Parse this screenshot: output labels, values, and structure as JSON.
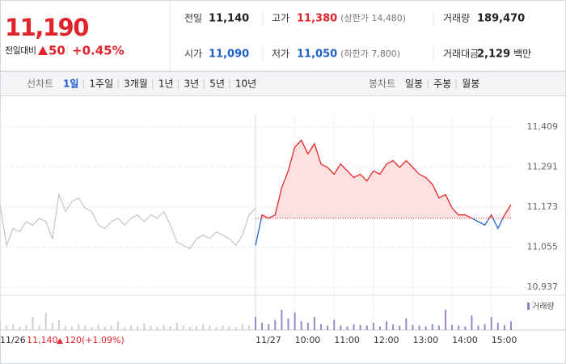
{
  "header": {
    "price": "11,190",
    "change_label": "전일대비",
    "change": "50",
    "rate": "+0.45%"
  },
  "quote": [
    {
      "label": "전일",
      "value": "11,140",
      "color": "#222222"
    },
    {
      "label": "고가",
      "value": "11,380",
      "note": "(상한가 14,480)",
      "color": "#e0242b"
    },
    {
      "label": "거래량",
      "value": "189,470",
      "color": "#222222"
    },
    {
      "label": "시가",
      "value": "11,090",
      "color": "#1e62c9"
    },
    {
      "label": "저가",
      "value": "11,050",
      "note": "(하한가 7,800)",
      "color": "#1e62c9"
    },
    {
      "label": "거래대금",
      "value": "2,129",
      "unit": "백만",
      "color": "#222222"
    }
  ],
  "tabs": {
    "line_label": "선차트",
    "line": [
      "1일",
      "1주일",
      "3개월",
      "1년",
      "3년",
      "5년",
      "10년"
    ],
    "active": 0,
    "candle_label": "봉차트",
    "candle": [
      "일봉",
      "주봉",
      "월봉"
    ]
  },
  "chart_data": {
    "type": "line",
    "xlim": [
      0,
      780
    ],
    "xticks": [
      {
        "value": 0,
        "label": "11/26"
      },
      {
        "value": 390,
        "label": "11/27"
      },
      {
        "value": 450,
        "label": "10:00"
      },
      {
        "value": 510,
        "label": "11:00"
      },
      {
        "value": 570,
        "label": "12:00"
      },
      {
        "value": 630,
        "label": "13:00"
      },
      {
        "value": 690,
        "label": "14:00"
      },
      {
        "value": 750,
        "label": "15:00"
      }
    ],
    "ylim": [
      10913,
      11445
    ],
    "yticks": [
      {
        "value": 11409,
        "label": "11,409"
      },
      {
        "value": 11291,
        "label": "11,291"
      },
      {
        "value": 11173,
        "label": "11,173"
      },
      {
        "value": 11055,
        "label": "11,055"
      },
      {
        "value": 10937,
        "label": "10,937"
      }
    ],
    "base": 11140,
    "series": [
      {
        "color": "#c4c4c4",
        "x": [
          0,
          10,
          20,
          30,
          40,
          50,
          60,
          70,
          80,
          90,
          100,
          110,
          120,
          130,
          140,
          150,
          160,
          170,
          180,
          190,
          200,
          210,
          220,
          230,
          240,
          250,
          260,
          270,
          280,
          290,
          300,
          310,
          320,
          330,
          340,
          350,
          360,
          370,
          380,
          390
        ],
        "values": [
          11180,
          11060,
          11110,
          11100,
          11130,
          11120,
          11140,
          11130,
          11080,
          11210,
          11160,
          11190,
          11200,
          11170,
          11160,
          11120,
          11110,
          11130,
          11140,
          11120,
          11140,
          11150,
          11130,
          11150,
          11140,
          11160,
          11120,
          11070,
          11060,
          11050,
          11080,
          11090,
          11080,
          11100,
          11090,
          11080,
          11060,
          11090,
          11150,
          11170
        ]
      },
      {
        "color": "#e8262a",
        "down_color": "#1e62c9",
        "fill": "#fde1e1",
        "x": [
          390,
          400,
          410,
          420,
          430,
          440,
          450,
          460,
          470,
          480,
          490,
          500,
          510,
          520,
          530,
          540,
          550,
          560,
          570,
          580,
          590,
          600,
          610,
          620,
          630,
          640,
          650,
          660,
          670,
          680,
          690,
          700,
          710,
          720,
          730,
          740,
          750,
          760,
          770,
          780
        ],
        "values": [
          11060,
          11150,
          11140,
          11150,
          11230,
          11280,
          11350,
          11370,
          11330,
          11360,
          11300,
          11290,
          11270,
          11300,
          11280,
          11260,
          11270,
          11250,
          11280,
          11270,
          11300,
          11310,
          11290,
          11310,
          11290,
          11270,
          11260,
          11240,
          11200,
          11210,
          11170,
          11150,
          11150,
          11140,
          11130,
          11120,
          11150,
          11110,
          11150,
          11180
        ]
      }
    ],
    "volume": {
      "name": "거래량",
      "legend_color": "#8e7cc3",
      "ylim": [
        0,
        20000
      ],
      "series": [
        {
          "color": "#cfcfcf",
          "x": [
            0,
            10,
            20,
            30,
            40,
            50,
            60,
            70,
            80,
            90,
            100,
            110,
            120,
            130,
            140,
            150,
            160,
            170,
            180,
            190,
            200,
            210,
            220,
            230,
            240,
            250,
            260,
            270,
            280,
            290,
            300,
            310,
            320,
            330,
            340,
            350,
            360,
            370,
            380,
            390
          ],
          "values": [
            6000,
            3000,
            4000,
            2500,
            3500,
            9000,
            3000,
            12000,
            5000,
            7000,
            3000,
            2500,
            4000,
            3000,
            2000,
            3500,
            2500,
            3000,
            6000,
            2000,
            3000,
            2500,
            4500,
            3000,
            2000,
            3500,
            2500,
            5000,
            3000,
            2000,
            2500,
            4000,
            3000,
            2000,
            3000,
            2500,
            2000,
            4000,
            3000,
            2500
          ]
        },
        {
          "color": "#9a86c9",
          "x": [
            390,
            400,
            410,
            420,
            430,
            440,
            450,
            460,
            470,
            480,
            490,
            500,
            510,
            520,
            530,
            540,
            550,
            560,
            570,
            580,
            590,
            600,
            610,
            620,
            630,
            640,
            650,
            660,
            670,
            680,
            690,
            700,
            710,
            720,
            730,
            740,
            750,
            760,
            770,
            780
          ],
          "values": [
            9000,
            5000,
            4000,
            7000,
            14000,
            8000,
            12000,
            6000,
            5000,
            9000,
            4000,
            3000,
            7000,
            3000,
            2500,
            4000,
            3500,
            3000,
            5000,
            2500,
            6000,
            4000,
            3000,
            8000,
            3500,
            3000,
            2500,
            4000,
            3000,
            14000,
            3500,
            3000,
            2500,
            10000,
            3000,
            4000,
            9000,
            5000,
            3500,
            6000
          ]
        }
      ]
    },
    "prev_summary": {
      "price": "11,140",
      "change": "120",
      "rate": "(+1.09%)"
    }
  }
}
